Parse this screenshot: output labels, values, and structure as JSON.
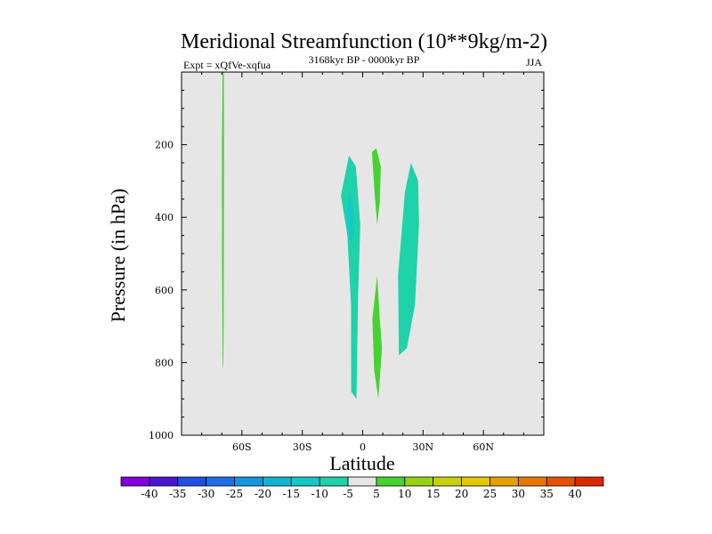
{
  "chart_data": {
    "type": "contour",
    "title": "Meridional Streamfunction (10**9kg/m-2)",
    "subtitle": "3168kyr BP - 0000kyr BP",
    "left_label": "Expt = xQfVe-xqfua",
    "right_label": "JJA",
    "xlabel": "Latitude",
    "ylabel": "Pressure (in hPa)",
    "xlim": [
      -90,
      90
    ],
    "ylim": [
      1000,
      0
    ],
    "x_ticks": [
      {
        "value": -60,
        "label": "60S"
      },
      {
        "value": -30,
        "label": "30S"
      },
      {
        "value": 0,
        "label": "0"
      },
      {
        "value": 30,
        "label": "30N"
      },
      {
        "value": 60,
        "label": "60N"
      }
    ],
    "y_ticks": [
      {
        "value": 200,
        "label": "200"
      },
      {
        "value": 400,
        "label": "400"
      },
      {
        "value": 600,
        "label": "600"
      },
      {
        "value": 800,
        "label": "800"
      },
      {
        "value": 1000,
        "label": "1000"
      }
    ],
    "background_color": "#e6e6e6",
    "colorbar": {
      "labels": [
        "-40",
        "-35",
        "-30",
        "-25",
        "-20",
        "-15",
        "-10",
        "-5",
        "5",
        "10",
        "15",
        "20",
        "25",
        "30",
        "35",
        "40"
      ],
      "colors": [
        "#8200dc",
        "#4b14d2",
        "#2050e0",
        "#1e6ee6",
        "#1496dc",
        "#0fb4d2",
        "#14c8c8",
        "#1ed2aa",
        "#e6e6e6",
        "#46d232",
        "#96d214",
        "#c8d20a",
        "#e6c800",
        "#e6a000",
        "#e67800",
        "#e65000",
        "#dc2800"
      ]
    },
    "regions": [
      {
        "name": "sh-polar-positive",
        "level": 5,
        "color": "#46d232",
        "points": [
          [
            -69.6,
            0
          ],
          [
            -69.0,
            0
          ],
          [
            -68.9,
            200
          ],
          [
            -69.0,
            500
          ],
          [
            -69.1,
            700
          ],
          [
            -69.3,
            820
          ],
          [
            -69.6,
            800
          ],
          [
            -69.9,
            500
          ],
          [
            -69.9,
            200
          ]
        ]
      },
      {
        "name": "tropical-negative",
        "level": -5,
        "color": "#1ed2aa",
        "points": [
          [
            -6.8,
            230
          ],
          [
            -3.4,
            260
          ],
          [
            -1.2,
            420
          ],
          [
            -2.3,
            620
          ],
          [
            -3.1,
            900
          ],
          [
            -5.7,
            880
          ],
          [
            -5.8,
            640
          ],
          [
            -7.6,
            450
          ],
          [
            -10.8,
            340
          ]
        ]
      },
      {
        "name": "tropical-negative-core",
        "level": -10,
        "color": "#14c8c8",
        "points": [
          [
            -6.5,
            330
          ],
          [
            -4.9,
            360
          ],
          [
            -4.3,
            450
          ],
          [
            -6.3,
            470
          ],
          [
            -7.7,
            400
          ]
        ]
      },
      {
        "name": "equatorial-upper-positive",
        "level": 5,
        "color": "#46d232",
        "points": [
          [
            6.8,
            210
          ],
          [
            9.0,
            260
          ],
          [
            8.5,
            360
          ],
          [
            7.2,
            420
          ],
          [
            6.0,
            340
          ],
          [
            4.6,
            220
          ]
        ]
      },
      {
        "name": "equatorial-lower-positive",
        "level": 5,
        "color": "#46d232",
        "points": [
          [
            7.2,
            560
          ],
          [
            8.5,
            680
          ],
          [
            9.6,
            760
          ],
          [
            7.8,
            900
          ],
          [
            5.7,
            820
          ],
          [
            4.8,
            680
          ]
        ]
      },
      {
        "name": "nh-subtropical-negative",
        "level": -5,
        "color": "#1ed2aa",
        "points": [
          [
            24.0,
            250
          ],
          [
            27.6,
            300
          ],
          [
            28.0,
            420
          ],
          [
            26.0,
            640
          ],
          [
            22.0,
            760
          ],
          [
            18.0,
            780
          ],
          [
            17.6,
            560
          ],
          [
            21.0,
            330
          ]
        ]
      }
    ]
  }
}
